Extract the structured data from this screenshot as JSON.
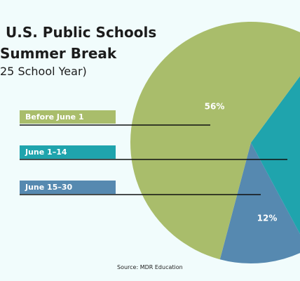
{
  "title_line1": "U.S. Public Schools",
  "title_line2": "Summer Break",
  "subtitle": "25 School Year)",
  "source": "Source: MDR Education",
  "chart_data": {
    "type": "pie",
    "categories": [
      "Before June 1",
      "June 1–14",
      "June 15–30"
    ],
    "values": [
      56,
      32,
      12
    ],
    "data_labels": [
      "56%",
      "",
      "12%"
    ],
    "colors": [
      "#a9bd6b",
      "#1fa4ad",
      "#5689b0"
    ],
    "legend_placement": "left",
    "legend_text_color": "#ffffff"
  }
}
